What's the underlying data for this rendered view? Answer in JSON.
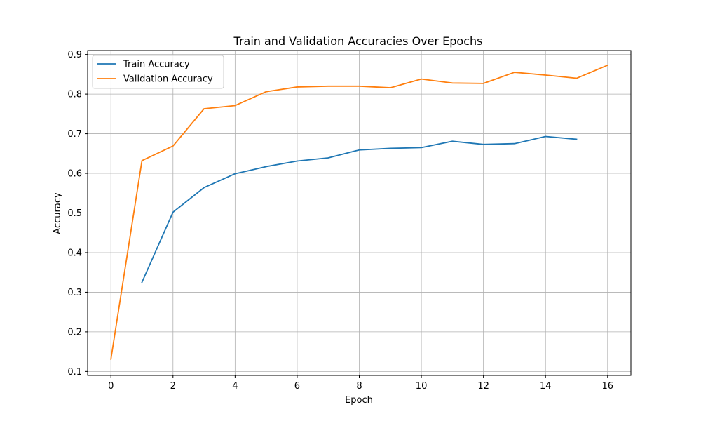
{
  "chart_data": {
    "type": "line",
    "title": "Train and Validation Accuracies Over Epochs",
    "xlabel": "Epoch",
    "ylabel": "Accuracy",
    "xlim": [
      -0.75,
      16.75
    ],
    "ylim": [
      0.09,
      0.91
    ],
    "xticks": [
      0,
      2,
      4,
      6,
      8,
      10,
      12,
      14,
      16
    ],
    "yticks": [
      0.1,
      0.2,
      0.3,
      0.4,
      0.5,
      0.6,
      0.7,
      0.8,
      0.9
    ],
    "grid": true,
    "legend_position": "top-left",
    "series": [
      {
        "name": "Train Accuracy",
        "color": "#1f77b4",
        "x": [
          1,
          2,
          3,
          4,
          5,
          6,
          7,
          8,
          9,
          10,
          11,
          12,
          13,
          14,
          15
        ],
        "y": [
          0.325,
          0.502,
          0.564,
          0.599,
          0.617,
          0.631,
          0.639,
          0.659,
          0.663,
          0.665,
          0.681,
          0.673,
          0.675,
          0.693,
          0.686
        ]
      },
      {
        "name": "Validation Accuracy",
        "color": "#ff7f0e",
        "x": [
          0,
          1,
          2,
          3,
          4,
          5,
          6,
          7,
          8,
          9,
          10,
          11,
          12,
          13,
          14,
          15,
          16
        ],
        "y": [
          0.131,
          0.632,
          0.669,
          0.763,
          0.771,
          0.806,
          0.818,
          0.82,
          0.82,
          0.816,
          0.838,
          0.828,
          0.827,
          0.855,
          0.848,
          0.84,
          0.873
        ]
      }
    ]
  }
}
